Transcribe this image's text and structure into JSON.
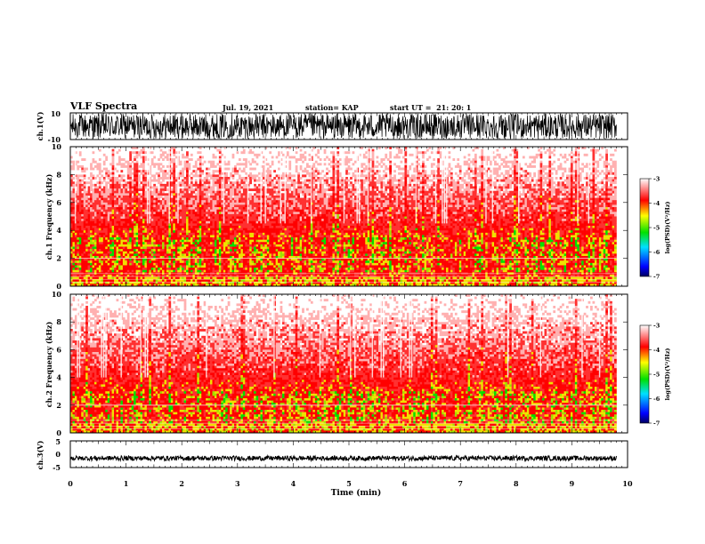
{
  "header": {
    "title": "VLF Spectra",
    "date": "Jul. 19, 2021",
    "station": "station= KAP",
    "start_ut": "start UT =  21: 20: 1"
  },
  "colors": {
    "scale_low": "#000060",
    "scale_mid1": "#00e0ff",
    "scale_mid2": "#00e000",
    "scale_mid3": "#ffff00",
    "scale_mid4": "#ff0000",
    "scale_high": "#ffffff",
    "trace": "#000000"
  },
  "chart_data": [
    {
      "id": "ch1-waveform",
      "type": "line",
      "ylabel": "ch.1(V)",
      "xlim": [
        0,
        10
      ],
      "ylim": [
        -10,
        10
      ],
      "yticks": [
        "10",
        "-10"
      ],
      "x_extent": [
        0,
        9.8
      ],
      "amplitude_range": [
        -10,
        10
      ]
    },
    {
      "id": "ch1-spectrogram",
      "type": "heatmap",
      "ylabel": "ch.1 Frequency (kHz)",
      "xlim": [
        0,
        10
      ],
      "ylim": [
        0,
        10
      ],
      "yticks": [
        "0",
        "2",
        "4",
        "6",
        "8",
        "10"
      ],
      "x_extent": [
        0,
        9.8
      ],
      "band_kHz": [
        1,
        3.5
      ],
      "colorbar": {
        "label": "log(PSD)(V²/Hz)",
        "range": [
          -7,
          -3
        ],
        "ticks": [
          "-3",
          "-4",
          "-5",
          "-6",
          "-7"
        ]
      }
    },
    {
      "id": "ch2-spectrogram",
      "type": "heatmap",
      "ylabel": "ch.2 Frequency (kHz)",
      "xlim": [
        0,
        10
      ],
      "ylim": [
        0,
        10
      ],
      "yticks": [
        "0",
        "2",
        "4",
        "6",
        "8",
        "10"
      ],
      "x_extent": [
        0,
        9.8
      ],
      "band_kHz": [
        0.5,
        3
      ],
      "colorbar": {
        "label": "log(PSD)(V²/Hz)",
        "range": [
          -7,
          -3
        ],
        "ticks": [
          "-3",
          "-4",
          "-5",
          "-6",
          "-7"
        ]
      }
    },
    {
      "id": "ch3-waveform",
      "type": "line",
      "ylabel": "ch.3(V)",
      "xlabel": "Time (min)",
      "xlim": [
        0,
        10
      ],
      "ylim": [
        -5,
        5
      ],
      "yticks": [
        "5",
        "0",
        "-5"
      ],
      "xticks": [
        "0",
        "1",
        "2",
        "3",
        "4",
        "5",
        "6",
        "7",
        "8",
        "9",
        "10"
      ],
      "x_extent": [
        0,
        9.8
      ],
      "level": -1.5
    }
  ]
}
